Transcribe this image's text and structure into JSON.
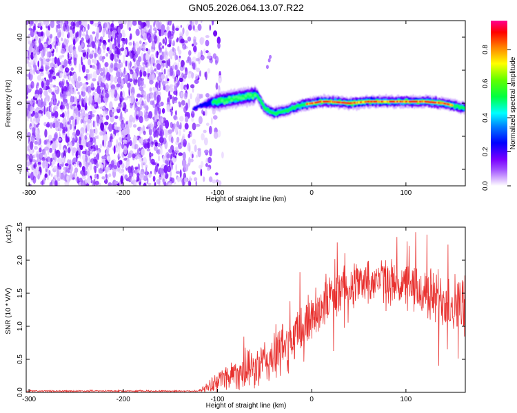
{
  "title": "GN05.2026.064.13.07.R22",
  "chart_data": [
    {
      "type": "heatmap",
      "name": "spectrogram",
      "xlabel": "Height of straight line (km)",
      "ylabel": "Frequency (Hz)",
      "xlim": [
        -303,
        163
      ],
      "ylim": [
        -50,
        50
      ],
      "xticks": [
        -300,
        -200,
        -100,
        0,
        100
      ],
      "yticks": [
        -40,
        -20,
        0,
        20,
        40
      ],
      "ridge": {
        "x": [
          -125,
          -110,
          -90,
          -70,
          -58,
          -50,
          -40,
          -30,
          -20,
          -10,
          0,
          10,
          20,
          40,
          60,
          80,
          100,
          120,
          140,
          163
        ],
        "y": [
          -3,
          0,
          2,
          4,
          5,
          -3,
          -6,
          -5,
          -3,
          -1,
          0,
          1,
          1,
          0,
          1,
          1,
          1,
          1,
          0,
          -3
        ]
      },
      "noise_region_xmax": -115
    },
    {
      "type": "colorbar",
      "label": "Normalized spectral amplitude",
      "range": [
        0.0,
        0.97
      ],
      "ticks": [
        "0.0",
        "0.2",
        "0.4",
        "0.6",
        "0.8"
      ],
      "tick_values": [
        0.0,
        0.2,
        0.4,
        0.6,
        0.8
      ]
    },
    {
      "type": "line",
      "name": "snr",
      "xlabel": "Height of straight line (km)",
      "ylabel": "SNR (10 * V/V)",
      "multiplier": "(x10",
      "multiplier_exp": "4",
      "multiplier_close": ")",
      "color": "#e8302e",
      "xlim": [
        -303,
        163
      ],
      "ylim": [
        0,
        2.5
      ],
      "xticks": [
        -300,
        -200,
        -100,
        0,
        100
      ],
      "yticks": [
        "0.0",
        "0.5",
        "1.0",
        "1.5",
        "2.0",
        "2.5"
      ],
      "ytick_values": [
        0.0,
        0.5,
        1.0,
        1.5,
        2.0,
        2.5
      ],
      "envelope": {
        "x": [
          -303,
          -120,
          -110,
          -95,
          -80,
          -60,
          -40,
          -20,
          0,
          20,
          40,
          60,
          80,
          100,
          120,
          140,
          163
        ],
        "mean": [
          0.02,
          0.02,
          0.08,
          0.22,
          0.3,
          0.35,
          0.55,
          0.8,
          1.15,
          1.45,
          1.65,
          1.7,
          1.7,
          1.6,
          1.5,
          1.4,
          1.3
        ],
        "spread": [
          0.01,
          0.01,
          0.08,
          0.18,
          0.25,
          0.3,
          0.4,
          0.4,
          0.4,
          0.35,
          0.32,
          0.3,
          0.32,
          0.35,
          0.4,
          0.45,
          0.45
        ]
      }
    }
  ]
}
